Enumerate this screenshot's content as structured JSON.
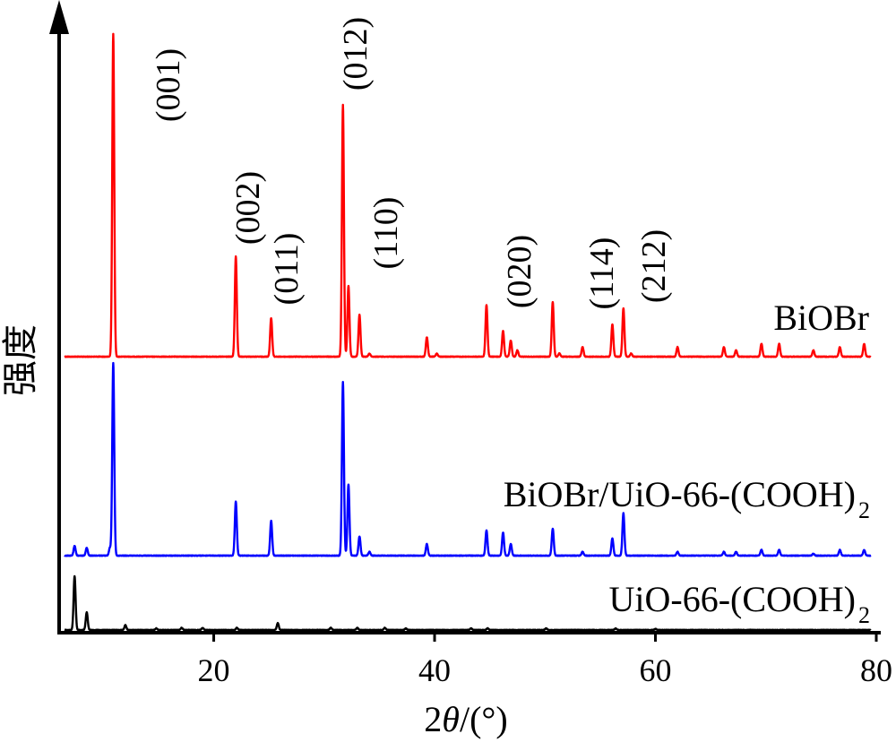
{
  "chart_data": {
    "type": "line",
    "title": "",
    "xlabel_prefix": "2",
    "xlabel_theta": "θ",
    "xlabel_suffix": "/(°)",
    "ylabel": "强度",
    "xlim": [
      6,
      80
    ],
    "x_ticks": [
      "20",
      "40",
      "60",
      "80"
    ],
    "x_tick_values": [
      20,
      40,
      60,
      80
    ],
    "y_ticks_shown": false,
    "grid": false,
    "series": [
      {
        "name": "BiOBr",
        "color": "#ff0000",
        "baseline": 0,
        "peaks": [
          [
            10.9,
            100
          ],
          [
            22.0,
            31
          ],
          [
            25.2,
            12
          ],
          [
            31.7,
            78
          ],
          [
            32.2,
            22
          ],
          [
            33.2,
            13
          ],
          [
            34.1,
            1
          ],
          [
            39.3,
            6
          ],
          [
            40.2,
            1
          ],
          [
            44.7,
            16
          ],
          [
            46.2,
            8
          ],
          [
            46.9,
            5
          ],
          [
            47.5,
            2
          ],
          [
            50.7,
            17
          ],
          [
            51.3,
            1
          ],
          [
            53.4,
            3
          ],
          [
            56.1,
            10
          ],
          [
            57.1,
            15
          ],
          [
            57.8,
            1
          ],
          [
            62.0,
            3
          ],
          [
            66.2,
            3
          ],
          [
            67.3,
            2
          ],
          [
            69.6,
            4
          ],
          [
            71.2,
            4
          ],
          [
            74.3,
            2
          ],
          [
            76.7,
            3
          ],
          [
            78.9,
            4
          ]
        ]
      },
      {
        "name": "BiOBr/UiO-66-(COOH)",
        "name_subscript": "2",
        "color": "#0000ff",
        "baseline": 0,
        "peaks": [
          [
            7.4,
            5
          ],
          [
            8.5,
            4
          ],
          [
            10.9,
            100
          ],
          [
            10.6,
            4
          ],
          [
            22.0,
            28
          ],
          [
            25.2,
            18
          ],
          [
            31.7,
            90
          ],
          [
            32.2,
            37
          ],
          [
            33.2,
            10
          ],
          [
            34.1,
            2
          ],
          [
            39.3,
            6
          ],
          [
            44.7,
            13
          ],
          [
            46.2,
            12
          ],
          [
            46.9,
            6
          ],
          [
            50.7,
            14
          ],
          [
            53.4,
            2
          ],
          [
            56.1,
            9
          ],
          [
            57.1,
            22
          ],
          [
            62.0,
            2
          ],
          [
            66.2,
            2
          ],
          [
            67.3,
            2
          ],
          [
            69.6,
            3
          ],
          [
            71.2,
            3
          ],
          [
            74.3,
            1
          ],
          [
            76.7,
            3
          ],
          [
            78.9,
            3
          ]
        ]
      },
      {
        "name": "UiO-66-(COOH)",
        "name_subscript": "2",
        "color": "#000000",
        "baseline": 0,
        "peaks": [
          [
            7.4,
            100
          ],
          [
            8.5,
            33
          ],
          [
            12.0,
            9
          ],
          [
            14.8,
            3
          ],
          [
            17.1,
            4
          ],
          [
            19.0,
            4
          ],
          [
            22.1,
            4
          ],
          [
            25.8,
            13
          ],
          [
            30.6,
            4
          ],
          [
            33.0,
            4
          ],
          [
            35.5,
            4
          ],
          [
            37.4,
            3
          ],
          [
            43.3,
            3
          ],
          [
            44.8,
            3
          ],
          [
            50.1,
            3
          ],
          [
            56.4,
            3
          ],
          [
            60.0,
            2
          ]
        ]
      }
    ],
    "annotations": [
      "(001)",
      "(002)",
      "(011)",
      "(012)",
      "(110)",
      "(020)",
      "(114)",
      "(212)"
    ]
  }
}
